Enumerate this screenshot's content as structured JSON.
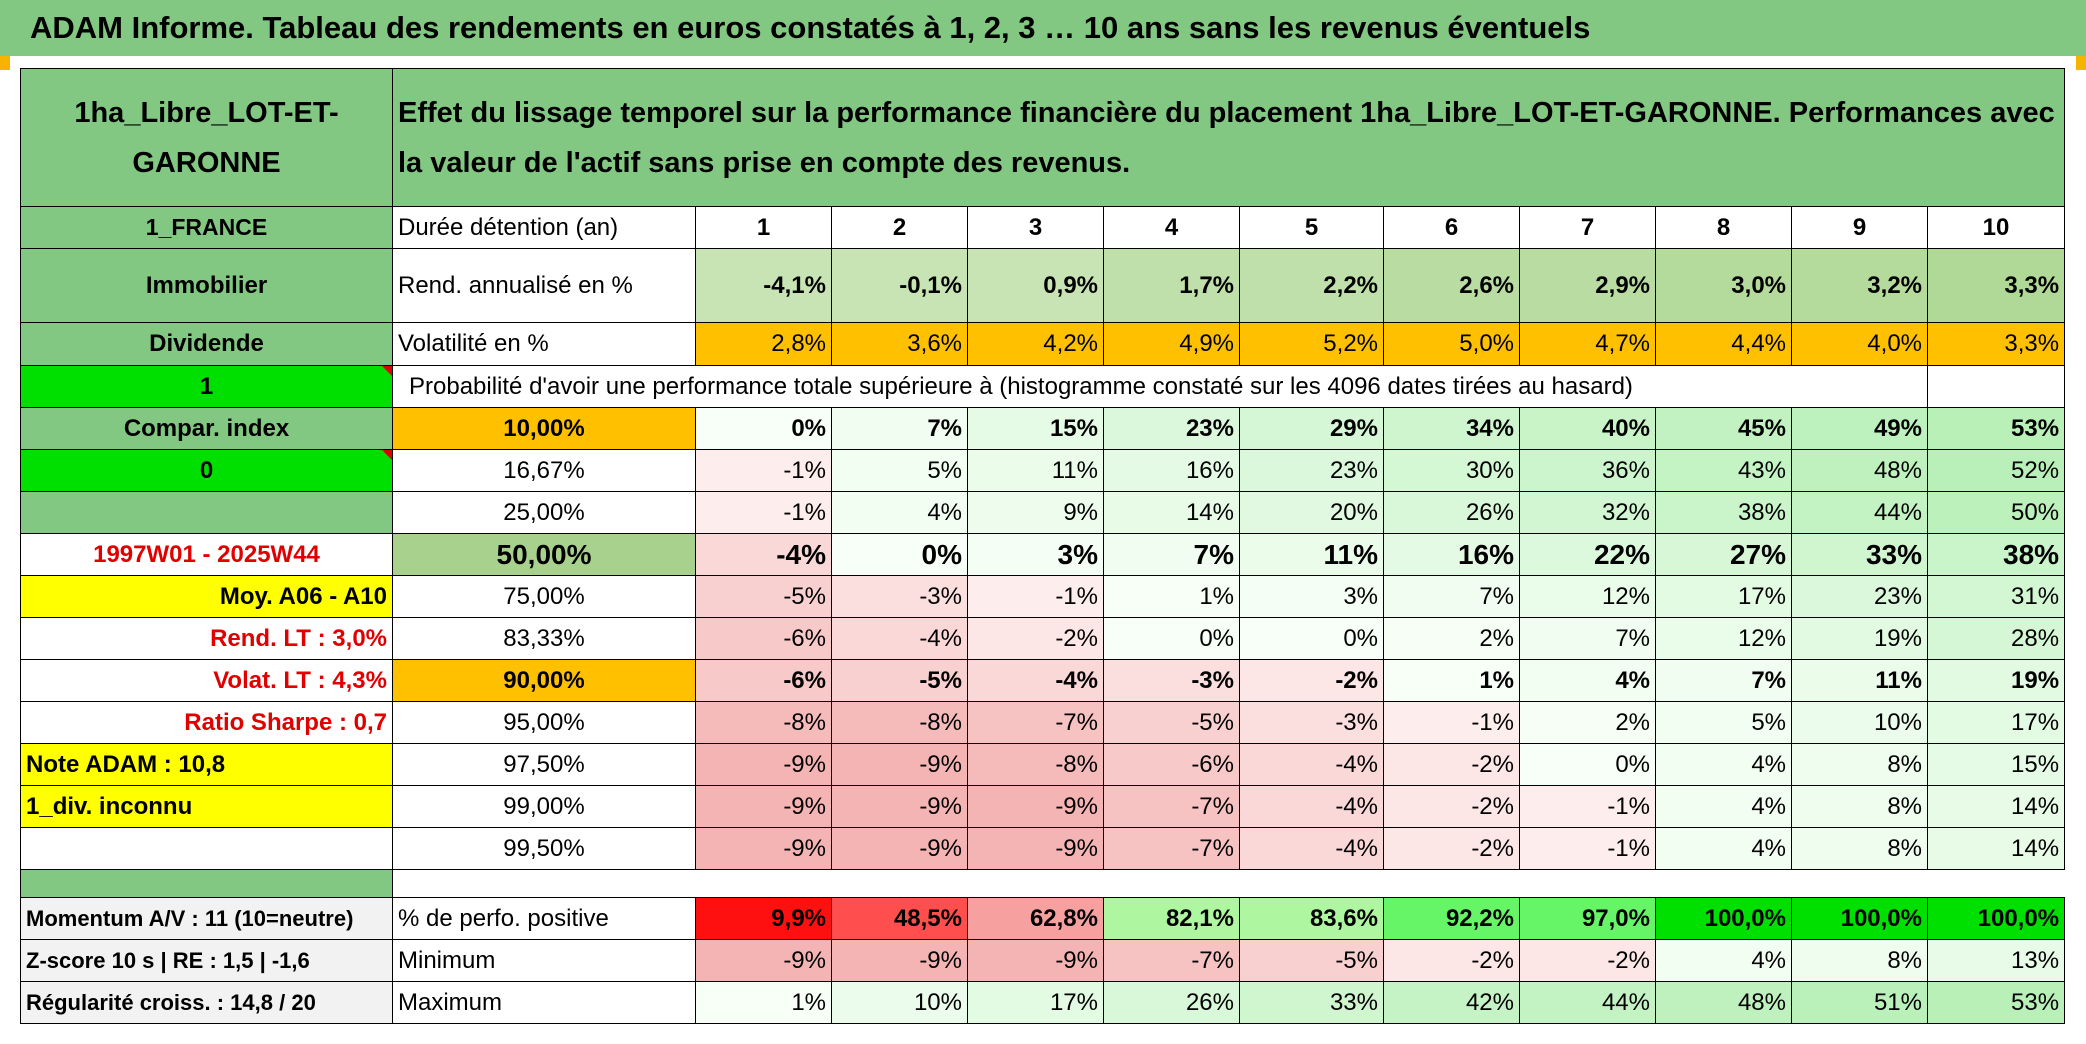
{
  "header": {
    "title": "ADAM Informe. Tableau des rendements en euros constatés à 1, 2, 3 … 10 ans sans les revenus éventuels"
  },
  "left": {
    "name": "1ha_Libre_LOT-ET-GARONNE",
    "country": "1_FRANCE",
    "class": "Immobilier",
    "dividend": "Dividende",
    "flag1": "1",
    "compar": "Compar. index",
    "flag0": "0",
    "period": "1997W01 - 2025W44",
    "moy": "Moy. A06 - A10",
    "rend_lt": "Rend. LT :   3,0%",
    "volat_lt": "Volat. LT :   4,3%",
    "sharpe": "Ratio Sharpe :    0,7",
    "note": "Note ADAM : 10,8",
    "div": "1_div. inconnu",
    "momentum": "Momentum A/V : 11 (10=neutre)",
    "zscore": "Z-score 10 s | RE : 1,5 | -1,6",
    "regularite": "Régularité croiss. : 14,8 / 20"
  },
  "main": {
    "description": "Effet du lissage temporel sur la performance financière du placement 1ha_Libre_LOT-ET-GARONNE. Performances avec la valeur de l'actif sans prise en compte des revenus.",
    "duree_label": "Durée détention (an)",
    "years": [
      "1",
      "2",
      "3",
      "4",
      "5",
      "6",
      "7",
      "8",
      "9",
      "10"
    ],
    "rend_label": "Rend. annualisé en %",
    "rend": [
      "-4,1%",
      "-0,1%",
      "0,9%",
      "1,7%",
      "2,2%",
      "2,6%",
      "2,9%",
      "3,0%",
      "3,2%",
      "3,3%"
    ],
    "vol_label": "Volatilité en %",
    "vol": [
      "2,8%",
      "3,6%",
      "4,2%",
      "4,9%",
      "5,2%",
      "5,0%",
      "4,7%",
      "4,4%",
      "4,0%",
      "3,3%"
    ],
    "prob_label": "Probabilité d'avoir une performance totale supérieure à (histogramme constaté sur les 4096 dates tirées au hasard)",
    "quantiles": [
      {
        "p": "10,00%",
        "v": [
          "0%",
          "7%",
          "15%",
          "23%",
          "29%",
          "34%",
          "40%",
          "45%",
          "49%",
          "53%"
        ]
      },
      {
        "p": "16,67%",
        "v": [
          "-1%",
          "5%",
          "11%",
          "16%",
          "23%",
          "30%",
          "36%",
          "43%",
          "48%",
          "52%"
        ]
      },
      {
        "p": "25,00%",
        "v": [
          "-1%",
          "4%",
          "9%",
          "14%",
          "20%",
          "26%",
          "32%",
          "38%",
          "44%",
          "50%"
        ]
      },
      {
        "p": "50,00%",
        "v": [
          "-4%",
          "0%",
          "3%",
          "7%",
          "11%",
          "16%",
          "22%",
          "27%",
          "33%",
          "38%"
        ]
      },
      {
        "p": "75,00%",
        "v": [
          "-5%",
          "-3%",
          "-1%",
          "1%",
          "3%",
          "7%",
          "12%",
          "17%",
          "23%",
          "31%"
        ]
      },
      {
        "p": "83,33%",
        "v": [
          "-6%",
          "-4%",
          "-2%",
          "0%",
          "0%",
          "2%",
          "7%",
          "12%",
          "19%",
          "28%"
        ]
      },
      {
        "p": "90,00%",
        "v": [
          "-6%",
          "-5%",
          "-4%",
          "-3%",
          "-2%",
          "1%",
          "4%",
          "7%",
          "11%",
          "19%"
        ]
      },
      {
        "p": "95,00%",
        "v": [
          "-8%",
          "-8%",
          "-7%",
          "-5%",
          "-3%",
          "-1%",
          "2%",
          "5%",
          "10%",
          "17%"
        ]
      },
      {
        "p": "97,50%",
        "v": [
          "-9%",
          "-9%",
          "-8%",
          "-6%",
          "-4%",
          "-2%",
          "0%",
          "4%",
          "8%",
          "15%"
        ]
      },
      {
        "p": "99,00%",
        "v": [
          "-9%",
          "-9%",
          "-9%",
          "-7%",
          "-4%",
          "-2%",
          "-1%",
          "4%",
          "8%",
          "14%"
        ]
      },
      {
        "p": "99,50%",
        "v": [
          "-9%",
          "-9%",
          "-9%",
          "-7%",
          "-4%",
          "-2%",
          "-1%",
          "4%",
          "8%",
          "14%"
        ]
      }
    ],
    "pos_label": "% de perfo. positive",
    "pos": [
      "9,9%",
      "48,5%",
      "62,8%",
      "82,1%",
      "83,6%",
      "92,2%",
      "97,0%",
      "100,0%",
      "100,0%",
      "100,0%"
    ],
    "min_label": "Minimum",
    "min": [
      "-9%",
      "-9%",
      "-9%",
      "-7%",
      "-5%",
      "-2%",
      "-2%",
      "4%",
      "8%",
      "13%"
    ],
    "max_label": "Maximum",
    "max": [
      "1%",
      "10%",
      "17%",
      "26%",
      "33%",
      "42%",
      "44%",
      "48%",
      "51%",
      "53%"
    ]
  }
}
